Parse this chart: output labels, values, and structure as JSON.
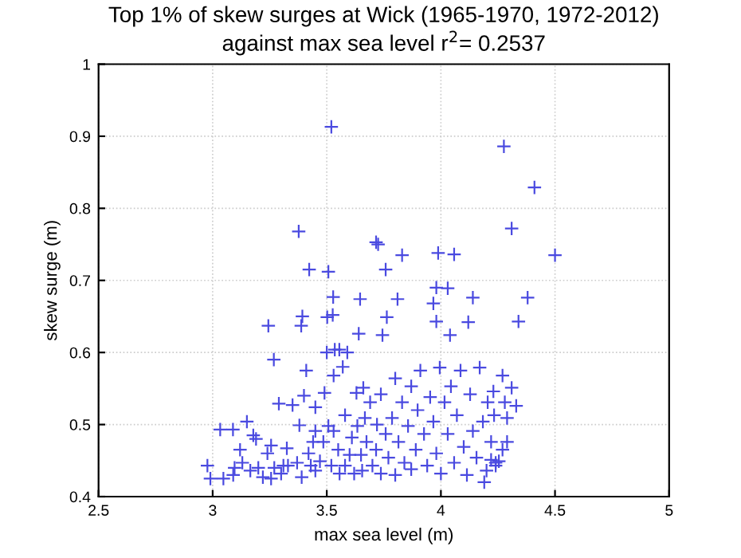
{
  "chart_data": {
    "type": "scatter",
    "title": "Top 1% of skew surges at Wick (1965-1970, 1972-2012)\nagainst max sea level r$^{2}$= 0.2537",
    "xlabel": "max sea level (m)",
    "ylabel": "skew surge (m)",
    "xlim": [
      2.5,
      5
    ],
    "ylim": [
      0.4,
      1
    ],
    "xticks": [
      2.5,
      3,
      3.5,
      4,
      4.5,
      5
    ],
    "yticks": [
      0.4,
      0.5,
      0.6,
      0.7,
      0.8,
      0.9,
      1
    ],
    "grid": true,
    "marker": "cross",
    "series": [
      {
        "color": "#4a4ae0",
        "x": [
          3.52,
          4.276,
          4.41,
          3.377,
          4.31,
          3.716,
          3.725,
          4.5,
          3.83,
          3.988,
          4.058,
          3.423,
          3.507,
          3.758,
          3.98,
          4.03,
          3.646,
          3.528,
          4.14,
          4.38,
          3.81,
          3.967,
          3.393,
          3.502,
          3.526,
          3.763,
          3.98,
          4.12,
          4.34,
          3.388,
          3.64,
          4.04,
          3.744,
          3.244,
          3.268,
          3.41,
          3.535,
          3.555,
          3.53,
          3.57,
          3.4,
          3.35,
          3.29,
          3.45,
          3.49,
          3.63,
          3.66,
          3.38,
          3.5,
          3.59,
          3.033,
          3.089,
          3.15,
          3.178,
          3.19,
          3.12,
          3.13,
          2.977,
          2.99,
          3.047,
          3.096,
          3.09,
          3.165,
          3.2,
          3.22,
          3.27,
          3.256,
          3.3,
          3.31,
          3.24,
          3.256,
          3.325,
          3.33,
          3.37,
          3.39,
          3.42,
          3.43,
          3.44,
          3.45,
          3.45,
          3.47,
          3.485,
          3.507,
          3.52,
          3.53,
          3.55,
          3.556,
          3.58,
          3.58,
          3.6,
          3.61,
          3.62,
          3.634,
          3.65,
          3.655,
          3.667,
          3.674,
          3.69,
          3.7,
          3.716,
          3.72,
          3.737,
          3.737,
          3.758,
          3.77,
          3.786,
          3.8,
          3.8,
          3.814,
          3.83,
          3.84,
          3.856,
          3.87,
          3.87,
          3.89,
          3.898,
          3.91,
          3.926,
          3.94,
          3.953,
          3.967,
          3.98,
          3.995,
          4.0,
          4.016,
          4.03,
          4.044,
          4.058,
          4.07,
          4.086,
          4.1,
          4.114,
          4.128,
          4.14,
          4.156,
          4.17,
          4.184,
          4.2,
          4.205,
          4.22,
          4.23,
          4.24,
          4.254,
          4.233,
          4.27,
          4.29,
          4.27,
          4.31,
          4.33,
          4.28,
          4.29,
          4.22,
          4.19,
          4.24
        ],
        "values": [
          0.913,
          0.886,
          0.829,
          0.768,
          0.772,
          0.753,
          0.75,
          0.735,
          0.735,
          0.738,
          0.736,
          0.715,
          0.712,
          0.715,
          0.69,
          0.689,
          0.674,
          0.677,
          0.676,
          0.676,
          0.674,
          0.668,
          0.65,
          0.649,
          0.652,
          0.649,
          0.643,
          0.642,
          0.643,
          0.637,
          0.626,
          0.624,
          0.624,
          0.637,
          0.59,
          0.575,
          0.604,
          0.604,
          0.568,
          0.58,
          0.54,
          0.527,
          0.529,
          0.524,
          0.544,
          0.544,
          0.551,
          0.499,
          0.6,
          0.6,
          0.493,
          0.493,
          0.504,
          0.485,
          0.48,
          0.465,
          0.447,
          0.443,
          0.425,
          0.425,
          0.44,
          0.43,
          0.436,
          0.44,
          0.427,
          0.44,
          0.425,
          0.432,
          0.443,
          0.46,
          0.471,
          0.467,
          0.443,
          0.447,
          0.427,
          0.46,
          0.443,
          0.476,
          0.491,
          0.436,
          0.449,
          0.476,
          0.498,
          0.443,
          0.491,
          0.465,
          0.432,
          0.513,
          0.443,
          0.458,
          0.482,
          0.432,
          0.498,
          0.458,
          0.436,
          0.509,
          0.476,
          0.531,
          0.443,
          0.465,
          0.5,
          0.542,
          0.432,
          0.487,
          0.454,
          0.509,
          0.564,
          0.43,
          0.476,
          0.531,
          0.447,
          0.498,
          0.553,
          0.438,
          0.465,
          0.52,
          0.575,
          0.487,
          0.443,
          0.538,
          0.504,
          0.46,
          0.579,
          0.432,
          0.531,
          0.487,
          0.553,
          0.447,
          0.513,
          0.575,
          0.469,
          0.43,
          0.542,
          0.491,
          0.454,
          0.579,
          0.504,
          0.436,
          0.531,
          0.476,
          0.546,
          0.443,
          0.449,
          0.513,
          0.465,
          0.509,
          0.568,
          0.551,
          0.526,
          0.531,
          0.476,
          0.451,
          0.42,
          0.447
        ]
      }
    ]
  }
}
